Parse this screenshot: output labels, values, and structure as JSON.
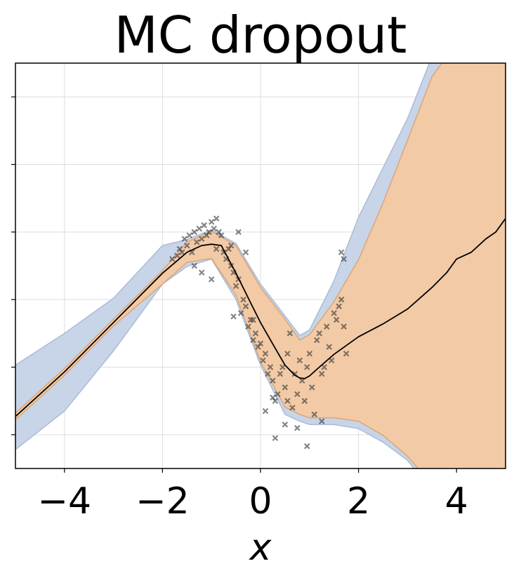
{
  "chart_data": {
    "type": "line",
    "title": "MC dropout",
    "xlabel": "x",
    "ylabel": "",
    "xlim": [
      -5,
      5
    ],
    "ylim": [
      -0.5,
      5.5
    ],
    "xticks": [
      -4,
      -2,
      0,
      2,
      4
    ],
    "xtick_labels": [
      "−4",
      "−2",
      "0",
      "2",
      "4"
    ],
    "yticks": [
      0,
      1,
      2,
      3,
      4,
      5
    ],
    "grid": true,
    "colors": {
      "mean": "#000000",
      "inner_band": "#f4c9a2",
      "outer_band": "#c5d2e6",
      "points": "#333333"
    },
    "bands": {
      "x": [
        -5,
        -4,
        -3,
        -2,
        -1.5,
        -1,
        -0.5,
        0,
        0.5,
        0.8,
        1,
        1.5,
        2,
        2.5,
        3,
        3.5,
        4,
        5
      ],
      "outer_lower": [
        -0.22,
        0.35,
        1.24,
        2.23,
        2.49,
        2.6,
        2.0,
        1.03,
        0.3,
        0.2,
        0.15,
        0.15,
        0.09,
        -0.11,
        -0.38,
        -0.84,
        -1.3,
        -2.1
      ],
      "outer_upper": [
        1.03,
        1.5,
        2.02,
        2.8,
        2.89,
        3.03,
        2.83,
        2.23,
        1.76,
        1.47,
        1.55,
        2.28,
        3.22,
        3.95,
        4.68,
        5.6,
        6.1,
        7.3
      ],
      "inner_lower": [
        0.22,
        0.88,
        1.61,
        2.23,
        2.55,
        2.61,
        2.07,
        1.08,
        0.41,
        0.3,
        0.25,
        0.25,
        0.2,
        -0.01,
        -0.32,
        -0.74,
        -1.2,
        -2.0
      ],
      "inner_upper": [
        0.32,
        0.98,
        1.71,
        2.43,
        2.85,
        3.01,
        2.8,
        2.18,
        1.71,
        1.4,
        1.48,
        1.97,
        2.59,
        3.43,
        4.36,
        5.3,
        5.8,
        7.0
      ]
    },
    "mean": {
      "x": [
        -5,
        -4,
        -3,
        -2,
        -1.5,
        -1.2,
        -1,
        -0.8,
        -0.5,
        -0.2,
        0,
        0.3,
        0.5,
        0.7,
        0.8,
        0.9,
        1,
        1.2,
        1.5,
        2,
        2.5,
        3,
        3.5,
        3.8,
        4,
        4.3,
        4.6,
        4.8,
        5
      ],
      "y": [
        0.27,
        0.93,
        1.66,
        2.39,
        2.7,
        2.8,
        2.82,
        2.8,
        2.39,
        1.95,
        1.66,
        1.28,
        1.03,
        0.88,
        0.84,
        0.83,
        0.87,
        1.0,
        1.19,
        1.45,
        1.64,
        1.86,
        2.18,
        2.4,
        2.6,
        2.7,
        2.9,
        3.0,
        3.2
      ]
    },
    "points": {
      "x": [
        -1.8,
        -1.7,
        -1.65,
        -1.6,
        -1.55,
        -1.5,
        -1.45,
        -1.4,
        -1.35,
        -1.3,
        -1.25,
        -1.2,
        -1.15,
        -1.1,
        -1.05,
        -1.0,
        -0.95,
        -0.9,
        -0.9,
        -0.85,
        -0.8,
        -0.75,
        -0.7,
        -0.65,
        -0.6,
        -0.55,
        -0.5,
        -0.45,
        -0.4,
        -0.35,
        -0.3,
        -0.25,
        -0.2,
        -0.15,
        -0.1,
        -0.05,
        0.0,
        0.05,
        0.1,
        0.15,
        0.2,
        0.25,
        0.3,
        0.35,
        0.4,
        0.45,
        0.5,
        0.55,
        0.6,
        0.65,
        0.7,
        0.75,
        0.8,
        0.85,
        0.9,
        0.95,
        1.0,
        1.05,
        1.1,
        1.15,
        1.2,
        1.25,
        1.3,
        1.35,
        1.4,
        1.45,
        1.5,
        1.55,
        1.6,
        1.65,
        1.7,
        1.75,
        -1.2,
        -1.0,
        -0.6,
        -0.45,
        -0.3,
        0.25,
        0.55,
        0.75,
        0.95,
        0.5,
        1.25,
        1.65,
        1.7,
        0.3,
        -0.15,
        -1.35,
        -0.55,
        0.1
      ],
      "y": [
        2.6,
        2.65,
        2.75,
        2.7,
        2.9,
        2.8,
        2.95,
        2.7,
        3.0,
        2.85,
        3.05,
        2.9,
        3.1,
        2.95,
        3.0,
        3.15,
        3.05,
        3.2,
        2.75,
        3.0,
        2.95,
        2.7,
        2.6,
        2.75,
        2.5,
        2.4,
        2.2,
        2.3,
        1.8,
        2.0,
        1.9,
        1.6,
        1.7,
        1.4,
        1.5,
        1.3,
        1.35,
        1.1,
        1.2,
        0.9,
        1.0,
        0.8,
        0.5,
        0.6,
        0.9,
        1.0,
        0.7,
        1.2,
        1.5,
        0.4,
        0.9,
        0.6,
        1.1,
        0.8,
        0.5,
        1.0,
        1.2,
        0.7,
        0.3,
        1.4,
        1.5,
        0.9,
        1.0,
        1.6,
        1.3,
        1.1,
        1.8,
        1.7,
        1.9,
        2.0,
        1.6,
        1.2,
        2.4,
        2.3,
        2.8,
        3.0,
        2.7,
        0.55,
        0.5,
        0.1,
        -0.17,
        0.15,
        0.2,
        2.7,
        2.6,
        -0.05,
        1.7,
        2.5,
        1.75,
        0.35
      ]
    }
  }
}
